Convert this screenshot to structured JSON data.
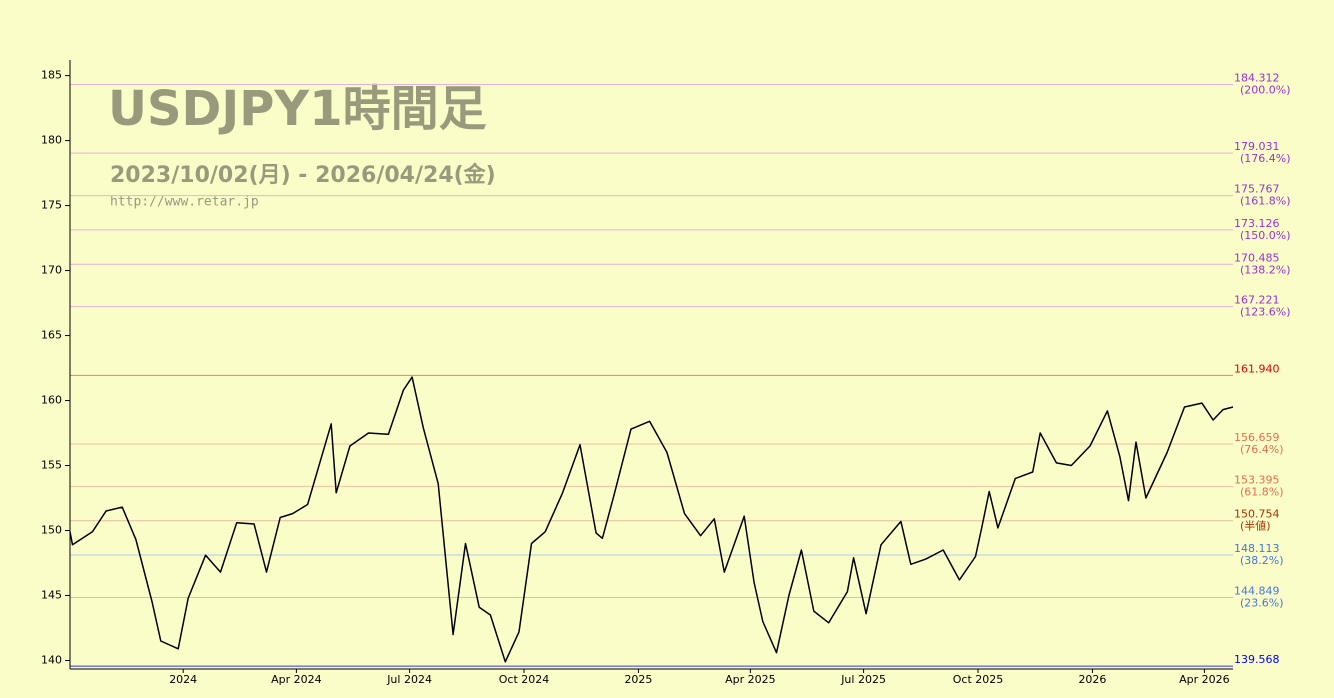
{
  "chart_data": {
    "type": "line",
    "title": "USDJPY1時間足",
    "subtitle": "2023/10/02(月) - 2026/04/24(金)",
    "source": "http://www.retar.jp",
    "xlim": [
      "2023-10-02",
      "2026-04-24"
    ],
    "xticks": [
      {
        "value": "2024-01-01",
        "label": "2024"
      },
      {
        "value": "2024-04-01",
        "label": "Apr 2024"
      },
      {
        "value": "2024-07-01",
        "label": "Jul 2024"
      },
      {
        "value": "2024-10-01",
        "label": "Oct 2024"
      },
      {
        "value": "2025-01-01",
        "label": "2025"
      },
      {
        "value": "2025-04-01",
        "label": "Apr 2025"
      },
      {
        "value": "2025-07-01",
        "label": "Jul 2025"
      },
      {
        "value": "2025-10-01",
        "label": "Oct 2025"
      },
      {
        "value": "2026-01-01",
        "label": "2026"
      },
      {
        "value": "2026-04-01",
        "label": "Apr 2026"
      }
    ],
    "ylim": [
      139.5,
      186.2
    ],
    "yticks": [
      140,
      145,
      150,
      155,
      160,
      165,
      170,
      175,
      180,
      185
    ],
    "x": [
      "2023-10-02",
      "2023-10-04",
      "2023-10-20",
      "2023-10-31",
      "2023-11-13",
      "2023-11-24",
      "2023-12-07",
      "2023-12-14",
      "2023-12-28",
      "2024-01-05",
      "2024-01-19",
      "2024-01-31",
      "2024-02-13",
      "2024-02-27",
      "2024-03-08",
      "2024-03-19",
      "2024-03-29",
      "2024-04-10",
      "2024-04-29",
      "2024-05-03",
      "2024-05-14",
      "2024-05-29",
      "2024-06-14",
      "2024-06-26",
      "2024-07-03",
      "2024-07-12",
      "2024-07-24",
      "2024-08-05",
      "2024-08-15",
      "2024-08-26",
      "2024-09-04",
      "2024-09-16",
      "2024-09-27",
      "2024-10-07",
      "2024-10-18",
      "2024-11-01",
      "2024-11-15",
      "2024-11-28",
      "2024-12-03",
      "2024-12-12",
      "2024-12-26",
      "2025-01-10",
      "2025-01-24",
      "2025-02-07",
      "2025-02-20",
      "2025-03-03",
      "2025-03-11",
      "2025-03-27",
      "2025-04-04",
      "2025-04-11",
      "2025-04-22",
      "2025-05-02",
      "2025-05-12",
      "2025-05-22",
      "2025-06-03",
      "2025-06-18",
      "2025-06-23",
      "2025-07-03",
      "2025-07-15",
      "2025-07-31",
      "2025-08-08",
      "2025-08-20",
      "2025-09-03",
      "2025-09-16",
      "2025-09-29",
      "2025-10-04",
      "2025-10-10",
      "2025-10-17",
      "2025-10-31",
      "2025-11-14",
      "2025-11-20",
      "2025-12-03",
      "2025-12-15",
      "2025-12-30",
      "2026-01-13",
      "2026-01-23",
      "2026-01-30",
      "2026-02-05",
      "2026-02-13",
      "2026-03-02",
      "2026-03-16",
      "2026-03-30",
      "2026-04-08",
      "2026-04-16",
      "2026-04-24"
    ],
    "series": [
      {
        "name": "USDJPY",
        "color": "#000000",
        "values": [
          149.9,
          148.9,
          149.9,
          151.5,
          151.8,
          149.3,
          144.5,
          141.5,
          140.9,
          144.8,
          148.1,
          146.8,
          150.6,
          150.5,
          146.8,
          151.0,
          151.3,
          152.0,
          158.2,
          152.9,
          156.5,
          157.5,
          157.4,
          160.8,
          161.8,
          157.9,
          153.6,
          142.0,
          149.0,
          144.1,
          143.5,
          139.9,
          142.2,
          149.0,
          149.9,
          152.9,
          156.6,
          149.8,
          149.4,
          152.6,
          157.8,
          158.4,
          156.0,
          151.3,
          149.6,
          150.9,
          146.8,
          151.1,
          146.0,
          143.0,
          140.6,
          145.0,
          148.5,
          143.8,
          142.9,
          145.3,
          147.9,
          143.6,
          148.9,
          150.7,
          147.4,
          147.8,
          148.5,
          146.2,
          148.0,
          150.2,
          153.0,
          150.2,
          154.0,
          154.5,
          157.5,
          155.2,
          155.0,
          156.5,
          159.2,
          155.7,
          152.3,
          156.8,
          152.5,
          156.0,
          159.5,
          159.8,
          158.5,
          159.3,
          159.5
        ]
      }
    ],
    "levels": [
      {
        "value": 184.312,
        "ratio": "(200.0%)",
        "color": "#9933cc",
        "line": "#e6b3d8"
      },
      {
        "value": 179.031,
        "ratio": "(176.4%)",
        "color": "#9933cc",
        "line": "#e6b3d8"
      },
      {
        "value": 175.767,
        "ratio": "(161.8%)",
        "color": "#9933cc",
        "line": "#e6b3d8"
      },
      {
        "value": 173.126,
        "ratio": "(150.0%)",
        "color": "#9933cc",
        "line": "#e6b3d8"
      },
      {
        "value": 170.485,
        "ratio": "(138.2%)",
        "color": "#9933cc",
        "line": "#e6b3d8"
      },
      {
        "value": 167.221,
        "ratio": "(123.6%)",
        "color": "#9933cc",
        "line": "#e6b3d8"
      },
      {
        "value": 161.94,
        "label": "161.940",
        "color": "#e00000",
        "line": "#e08080"
      },
      {
        "value": 156.659,
        "ratio": "(76.4%)",
        "color": "#e07050",
        "line": "#f0c0a0"
      },
      {
        "value": 153.395,
        "ratio": "(61.8%)",
        "color": "#e07050",
        "line": "#f0c0a0"
      },
      {
        "value": 150.754,
        "ratio": "(半値)",
        "color": "#aa3300",
        "line": "#e0c0a0"
      },
      {
        "value": 148.113,
        "ratio": "(38.2%)",
        "color": "#4477dd",
        "line": "#b0c8f0"
      },
      {
        "value": 144.849,
        "ratio": "(23.6%)",
        "color": "#4477dd",
        "line": "#b0c8f0"
      },
      {
        "value": 139.568,
        "color": "#0000ff",
        "line": "#3030ff"
      }
    ]
  }
}
